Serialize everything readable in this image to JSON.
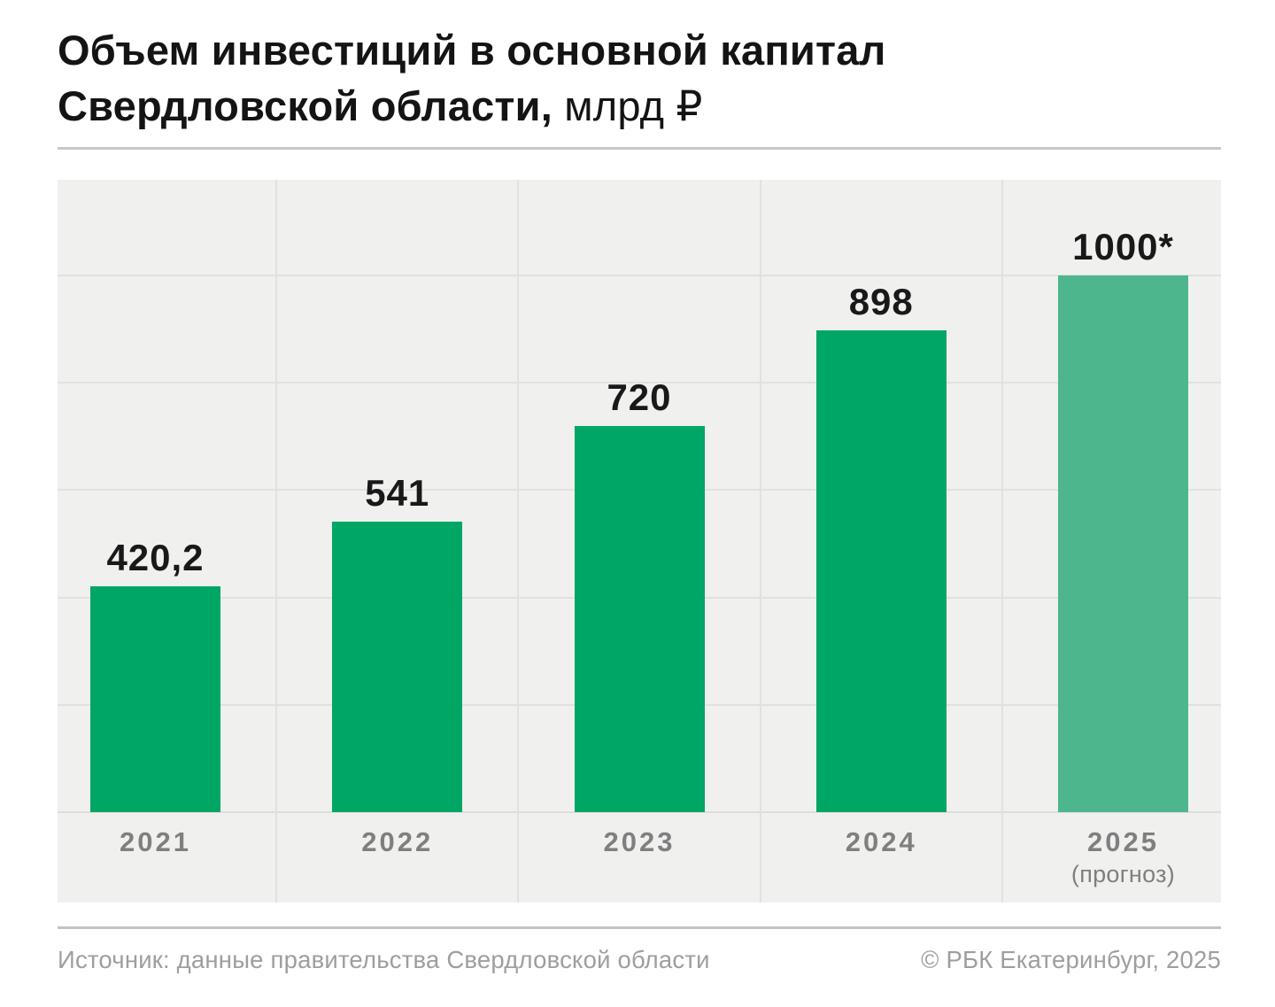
{
  "title": {
    "line1": "Объем инвестиций в основной капитал",
    "line2_bold": "Свердловской области,",
    "line2_light": "млрд ₽"
  },
  "chart_data": {
    "type": "bar",
    "title": "Объем инвестиций в основной капитал Свердловской области, млрд ₽",
    "categories": [
      "2021",
      "2022",
      "2023",
      "2024",
      "2025"
    ],
    "category_sublabels": [
      "",
      "",
      "",
      "",
      "(прогноз)"
    ],
    "values": [
      420.2,
      541,
      720,
      898,
      1000
    ],
    "value_labels": [
      "420,2",
      "541",
      "720",
      "898",
      "1000*"
    ],
    "bar_colors": [
      "#00a664",
      "#00a664",
      "#00a664",
      "#00a664",
      "#4db68d"
    ],
    "ylim": [
      0,
      1180
    ],
    "grid_step": 200,
    "grid": true,
    "legend": false,
    "xlabel": "",
    "ylabel": "млрд ₽"
  },
  "colors": {
    "bar": "#00a664",
    "bar_forecast": "#4db68d",
    "plot_bg": "#f0f0ef",
    "gridline": "#e1e1df",
    "title_text": "#141414",
    "value_label": "#191919",
    "axis_label": "#7f7f7f",
    "footer_text": "#9e9e9e",
    "divider": "#c7c7c7"
  },
  "footer": {
    "source": "Источник: данные правительства Свердловской области",
    "copyright": "© РБК Екатеринбург, 2025"
  }
}
